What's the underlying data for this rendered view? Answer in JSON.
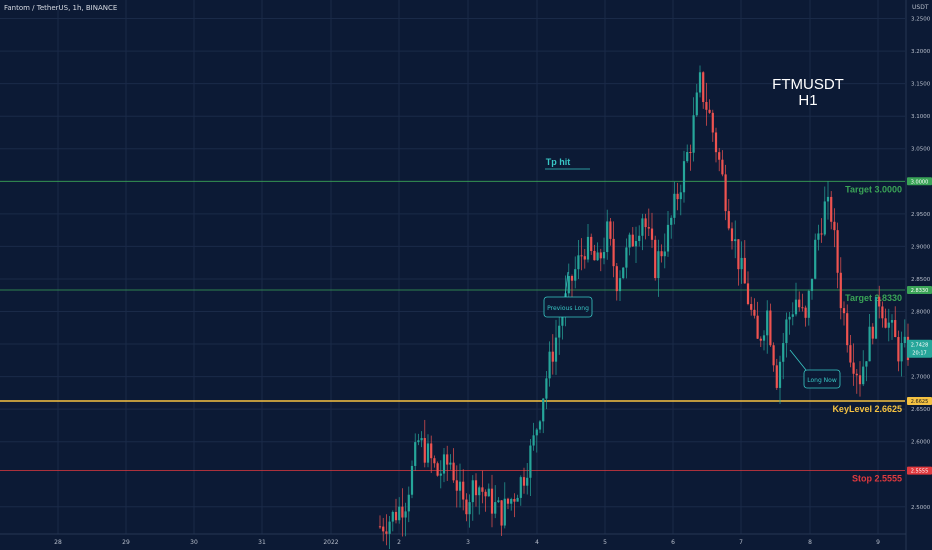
{
  "header": {
    "symbol_line": "Fantom / TetherUS, 1h, BINANCE",
    "currency": "USDT"
  },
  "overlay": {
    "line1": "FTMUSDT",
    "line2": "H1"
  },
  "chart_data": {
    "type": "candlestick",
    "x_ticks": [
      "28",
      "29",
      "30",
      "31",
      "2022",
      "2",
      "3",
      "4",
      "5",
      "6",
      "7",
      "8",
      "9"
    ],
    "y_ticks": [
      "3.2500",
      "3.2000",
      "3.1500",
      "3.1000",
      "3.0500",
      "2.9500",
      "2.9000",
      "2.8500",
      "2.8000",
      "2.7500",
      "2.7000",
      "2.6500",
      "2.6000",
      "2.5000"
    ],
    "ylim": [
      2.46,
      3.26
    ],
    "levels": [
      {
        "label": "Target 3.0000",
        "tag": "3.0000",
        "value": 3.0,
        "color": "#3aa457"
      },
      {
        "label": "Target 2.8330",
        "tag": "2.8330",
        "value": 2.833,
        "color": "#3aa457"
      },
      {
        "label": "KeyLevel 2.6625",
        "tag": "2.6625",
        "value": 2.6625,
        "color": "#f5c242"
      },
      {
        "label": "Stop 2.5555",
        "tag": "2.5555",
        "value": 2.5555,
        "color": "#e0393e"
      }
    ],
    "current_price": {
      "value": "2.7428",
      "countdown": "20:17",
      "y": 2.7428
    },
    "annotations": [
      {
        "text": "Tp hit",
        "kind": "label"
      },
      {
        "text": "Previous Long",
        "kind": "callout"
      },
      {
        "text": "Long Now",
        "kind": "callout"
      }
    ],
    "path": [
      [
        0,
        2.47
      ],
      [
        4,
        2.485
      ],
      [
        8,
        2.51
      ],
      [
        12,
        2.6
      ],
      [
        15,
        2.58
      ],
      [
        18,
        2.55
      ],
      [
        22,
        2.57
      ],
      [
        26,
        2.5
      ],
      [
        30,
        2.54
      ],
      [
        34,
        2.51
      ],
      [
        38,
        2.49
      ],
      [
        42,
        2.52
      ],
      [
        45,
        2.55
      ],
      [
        48,
        2.6
      ],
      [
        52,
        2.7
      ],
      [
        56,
        2.78
      ],
      [
        60,
        2.85
      ],
      [
        64,
        2.9
      ],
      [
        68,
        2.87
      ],
      [
        71,
        2.92
      ],
      [
        74,
        2.85
      ],
      [
        78,
        2.9
      ],
      [
        82,
        2.95
      ],
      [
        86,
        2.87
      ],
      [
        90,
        2.92
      ],
      [
        94,
        3.0
      ],
      [
        97,
        3.06
      ],
      [
        100,
        3.15
      ],
      [
        103,
        3.1
      ],
      [
        106,
        3.03
      ],
      [
        109,
        2.95
      ],
      [
        112,
        2.88
      ],
      [
        115,
        2.82
      ],
      [
        118,
        2.75
      ],
      [
        121,
        2.8
      ],
      [
        124,
        2.7
      ],
      [
        127,
        2.78
      ],
      [
        130,
        2.82
      ],
      [
        133,
        2.78
      ],
      [
        136,
        2.9
      ],
      [
        139,
        2.96
      ],
      [
        141,
        2.95
      ],
      [
        144,
        2.82
      ],
      [
        147,
        2.74
      ],
      [
        150,
        2.7
      ],
      [
        153,
        2.76
      ],
      [
        156,
        2.82
      ],
      [
        159,
        2.78
      ],
      [
        162,
        2.74
      ],
      [
        165,
        2.74
      ]
    ]
  },
  "colors": {
    "background": "#0c1a35",
    "grid": "#1a2a48",
    "up": "#26a69a",
    "down": "#ef5350",
    "axis_text": "#b8bfcc",
    "callout": "#38c7c5"
  }
}
